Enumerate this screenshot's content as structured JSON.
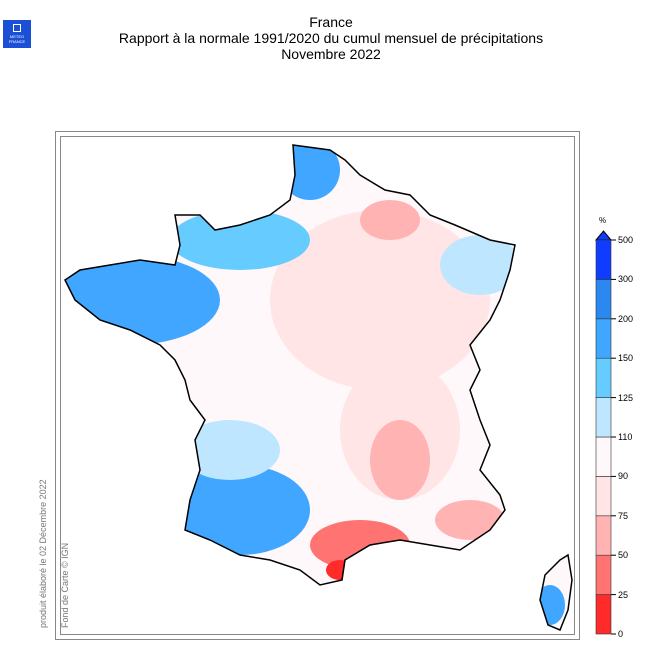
{
  "logo": {
    "text_line1": "METEO",
    "text_line2": "FRANCE"
  },
  "title": {
    "line1": "France",
    "line2": "Rapport à la normale 1991/2020 du cumul mensuel de précipitations",
    "line3": "Novembre 2022"
  },
  "credits": {
    "produced": "produit élaboré le 02 Décembre 2022",
    "basemap": "Fond de Carte © IGN"
  },
  "legend": {
    "unit": "%",
    "ticks": [
      "0",
      "25",
      "50",
      "75",
      "90",
      "110",
      "125",
      "150",
      "200",
      "300",
      "500"
    ],
    "colors": [
      "#ff2a2a",
      "#ff7373",
      "#ffb3b3",
      "#ffe5e5",
      "#fff8fb",
      "#bfe6ff",
      "#66ccff",
      "#40a6ff",
      "#2b88f0",
      "#0f3cff"
    ]
  }
}
